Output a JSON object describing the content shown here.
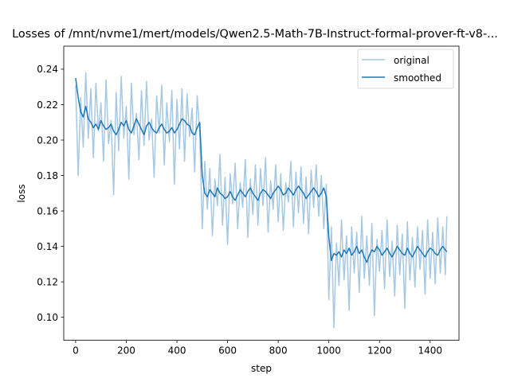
{
  "chart_data": {
    "type": "line",
    "title": "Losses of /mnt/nvme1/mert/models/Qwen2.5-Math-7B-Instruct-formal-prover-ft-v8-...",
    "xlabel": "step",
    "ylabel": "loss",
    "xlim": [
      -47,
      1514
    ],
    "ylim": [
      0.087,
      0.253
    ],
    "x_ticks": [
      0,
      200,
      400,
      600,
      800,
      1000,
      1200,
      1400
    ],
    "y_ticks": [
      0.1,
      0.12,
      0.14,
      0.16,
      0.18,
      0.2,
      0.22,
      0.24
    ],
    "y_tick_labels": [
      "0.10",
      "0.12",
      "0.14",
      "0.16",
      "0.18",
      "0.20",
      "0.22",
      "0.24"
    ],
    "grid": false,
    "legend_position": "top-right",
    "series": [
      {
        "name": "original",
        "color": "#a6c8e3",
        "x": [
          0,
          10,
          20,
          30,
          40,
          50,
          60,
          70,
          80,
          90,
          100,
          110,
          120,
          130,
          140,
          150,
          160,
          170,
          180,
          190,
          200,
          210,
          220,
          230,
          240,
          250,
          260,
          270,
          280,
          290,
          300,
          310,
          320,
          330,
          340,
          350,
          360,
          370,
          380,
          390,
          400,
          410,
          420,
          430,
          440,
          450,
          460,
          470,
          480,
          490,
          500,
          510,
          520,
          530,
          540,
          550,
          560,
          570,
          580,
          590,
          600,
          610,
          620,
          630,
          640,
          650,
          660,
          670,
          680,
          690,
          700,
          710,
          720,
          730,
          740,
          750,
          760,
          770,
          780,
          790,
          800,
          810,
          820,
          830,
          840,
          850,
          860,
          870,
          880,
          890,
          900,
          910,
          920,
          930,
          940,
          950,
          960,
          970,
          980,
          990,
          1000,
          1010,
          1020,
          1030,
          1040,
          1050,
          1060,
          1070,
          1080,
          1090,
          1100,
          1110,
          1120,
          1130,
          1140,
          1150,
          1160,
          1170,
          1180,
          1190,
          1200,
          1210,
          1220,
          1230,
          1240,
          1250,
          1260,
          1270,
          1280,
          1290,
          1300,
          1310,
          1320,
          1330,
          1340,
          1350,
          1360,
          1370,
          1380,
          1390,
          1400,
          1410,
          1420,
          1430,
          1440,
          1450,
          1460,
          1466
        ],
        "y": [
          0.231,
          0.18,
          0.224,
          0.196,
          0.238,
          0.201,
          0.229,
          0.19,
          0.232,
          0.205,
          0.221,
          0.188,
          0.234,
          0.198,
          0.211,
          0.169,
          0.227,
          0.194,
          0.236,
          0.201,
          0.219,
          0.178,
          0.232,
          0.203,
          0.215,
          0.189,
          0.228,
          0.197,
          0.233,
          0.2,
          0.212,
          0.179,
          0.225,
          0.204,
          0.231,
          0.186,
          0.221,
          0.199,
          0.228,
          0.175,
          0.223,
          0.195,
          0.229,
          0.188,
          0.226,
          0.202,
          0.218,
          0.182,
          0.225,
          0.204,
          0.15,
          0.188,
          0.161,
          0.184,
          0.146,
          0.178,
          0.163,
          0.192,
          0.152,
          0.179,
          0.141,
          0.181,
          0.164,
          0.187,
          0.15,
          0.176,
          0.162,
          0.189,
          0.145,
          0.178,
          0.158,
          0.186,
          0.152,
          0.184,
          0.163,
          0.19,
          0.148,
          0.177,
          0.161,
          0.186,
          0.154,
          0.181,
          0.149,
          0.176,
          0.165,
          0.188,
          0.151,
          0.182,
          0.159,
          0.185,
          0.153,
          0.179,
          0.147,
          0.183,
          0.162,
          0.186,
          0.157,
          0.18,
          0.15,
          0.175,
          0.11,
          0.151,
          0.094,
          0.142,
          0.118,
          0.155,
          0.121,
          0.146,
          0.104,
          0.151,
          0.125,
          0.148,
          0.114,
          0.157,
          0.122,
          0.146,
          0.118,
          0.153,
          0.101,
          0.144,
          0.126,
          0.149,
          0.116,
          0.155,
          0.123,
          0.143,
          0.112,
          0.152,
          0.124,
          0.147,
          0.105,
          0.154,
          0.121,
          0.145,
          0.117,
          0.151,
          0.127,
          0.149,
          0.113,
          0.155,
          0.122,
          0.148,
          0.119,
          0.156,
          0.125,
          0.151,
          0.124,
          0.157
        ]
      },
      {
        "name": "smoothed",
        "color": "#1f77b4",
        "x": [
          0,
          10,
          20,
          30,
          40,
          50,
          60,
          70,
          80,
          90,
          100,
          110,
          120,
          130,
          140,
          150,
          160,
          170,
          180,
          190,
          200,
          210,
          220,
          230,
          240,
          250,
          260,
          270,
          280,
          290,
          300,
          310,
          320,
          330,
          340,
          350,
          360,
          370,
          380,
          390,
          400,
          410,
          420,
          430,
          440,
          450,
          460,
          470,
          480,
          490,
          500,
          510,
          520,
          530,
          540,
          550,
          560,
          570,
          580,
          590,
          600,
          610,
          620,
          630,
          640,
          650,
          660,
          670,
          680,
          690,
          700,
          710,
          720,
          730,
          740,
          750,
          760,
          770,
          780,
          790,
          800,
          810,
          820,
          830,
          840,
          850,
          860,
          870,
          880,
          890,
          900,
          910,
          920,
          930,
          940,
          950,
          960,
          970,
          980,
          990,
          1000,
          1010,
          1020,
          1030,
          1040,
          1050,
          1060,
          1070,
          1080,
          1090,
          1100,
          1110,
          1120,
          1130,
          1140,
          1150,
          1160,
          1170,
          1180,
          1190,
          1200,
          1210,
          1220,
          1230,
          1240,
          1250,
          1260,
          1270,
          1280,
          1290,
          1300,
          1310,
          1320,
          1330,
          1340,
          1350,
          1360,
          1370,
          1380,
          1390,
          1400,
          1410,
          1420,
          1430,
          1440,
          1450,
          1460,
          1466
        ],
        "y": [
          0.235,
          0.224,
          0.216,
          0.213,
          0.219,
          0.212,
          0.21,
          0.207,
          0.209,
          0.206,
          0.211,
          0.208,
          0.206,
          0.207,
          0.209,
          0.205,
          0.203,
          0.206,
          0.21,
          0.208,
          0.211,
          0.206,
          0.204,
          0.208,
          0.212,
          0.209,
          0.206,
          0.203,
          0.208,
          0.21,
          0.207,
          0.205,
          0.204,
          0.207,
          0.209,
          0.206,
          0.204,
          0.205,
          0.207,
          0.204,
          0.206,
          0.209,
          0.212,
          0.211,
          0.209,
          0.208,
          0.204,
          0.203,
          0.207,
          0.21,
          0.18,
          0.17,
          0.168,
          0.172,
          0.17,
          0.168,
          0.173,
          0.17,
          0.169,
          0.167,
          0.168,
          0.171,
          0.168,
          0.166,
          0.169,
          0.172,
          0.17,
          0.168,
          0.171,
          0.173,
          0.17,
          0.168,
          0.166,
          0.17,
          0.172,
          0.171,
          0.169,
          0.167,
          0.17,
          0.172,
          0.174,
          0.172,
          0.169,
          0.17,
          0.173,
          0.171,
          0.169,
          0.172,
          0.174,
          0.172,
          0.17,
          0.167,
          0.169,
          0.171,
          0.173,
          0.171,
          0.168,
          0.17,
          0.173,
          0.168,
          0.145,
          0.132,
          0.136,
          0.135,
          0.137,
          0.134,
          0.138,
          0.136,
          0.139,
          0.135,
          0.137,
          0.14,
          0.136,
          0.138,
          0.134,
          0.131,
          0.135,
          0.138,
          0.137,
          0.14,
          0.138,
          0.135,
          0.137,
          0.139,
          0.136,
          0.134,
          0.137,
          0.14,
          0.138,
          0.136,
          0.135,
          0.139,
          0.136,
          0.134,
          0.137,
          0.14,
          0.138,
          0.136,
          0.134,
          0.137,
          0.139,
          0.138,
          0.136,
          0.135,
          0.138,
          0.14,
          0.138,
          0.137
        ]
      }
    ]
  }
}
